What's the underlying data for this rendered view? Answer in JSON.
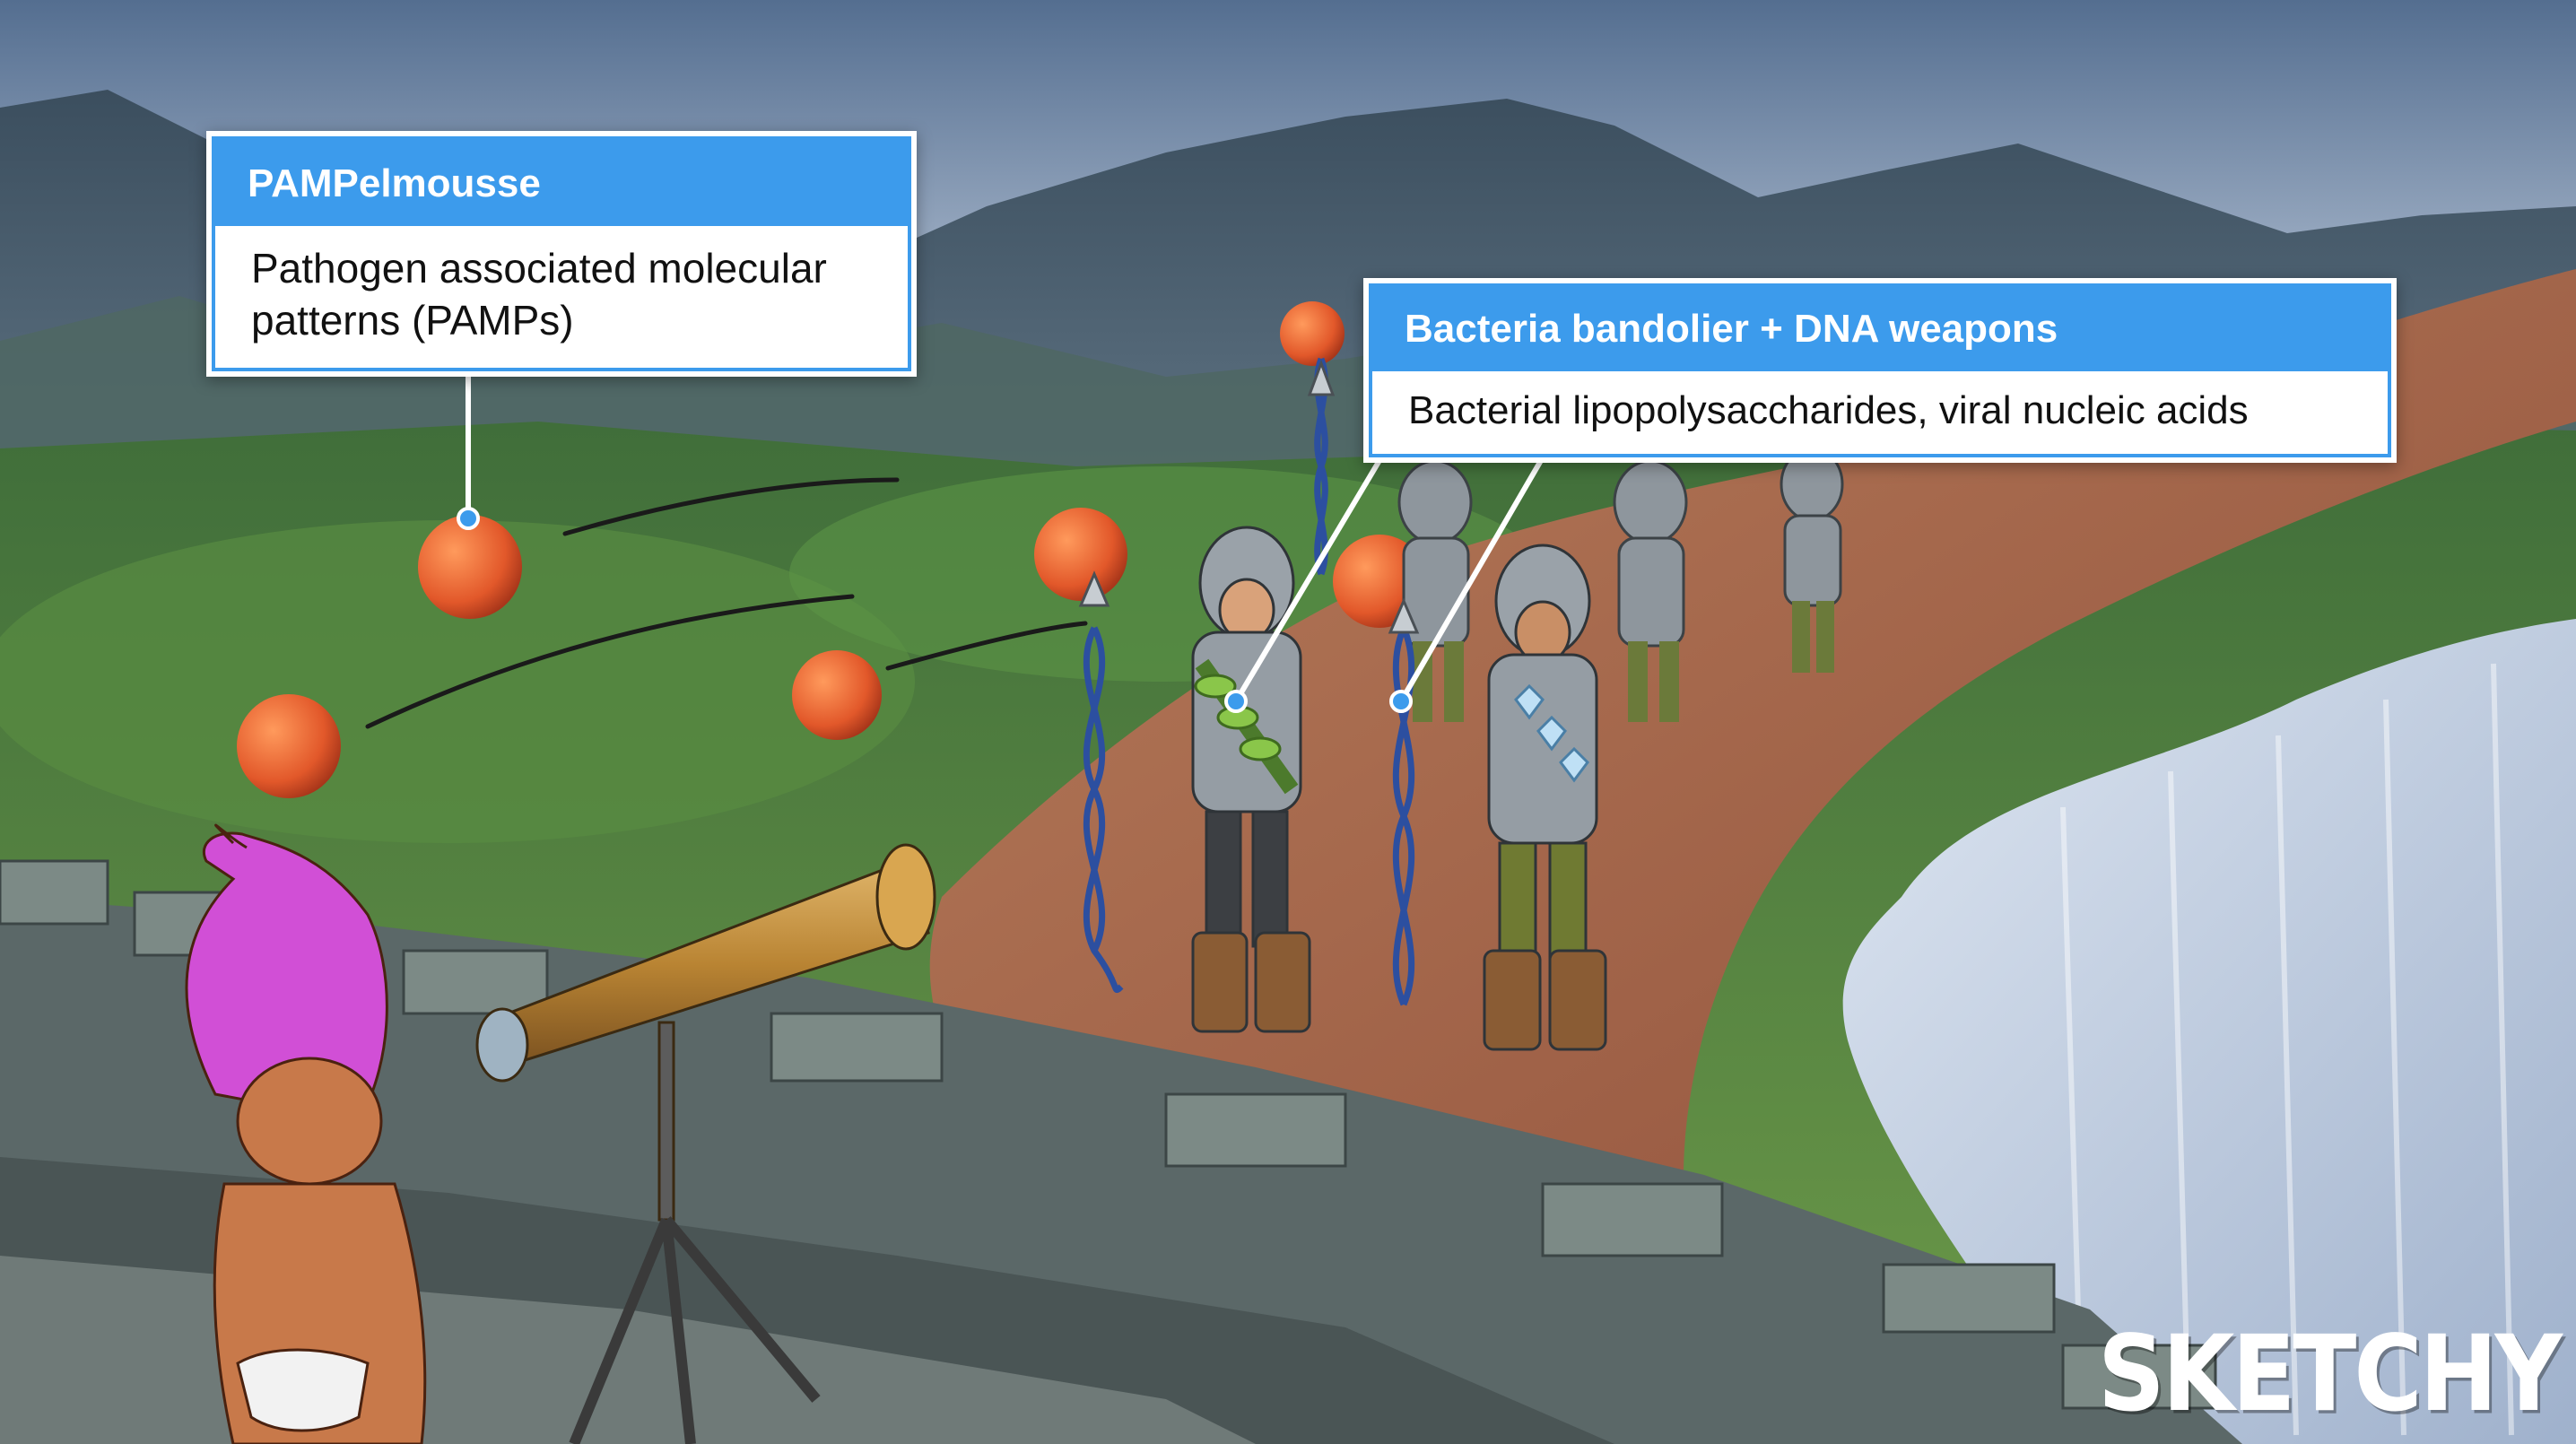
{
  "callouts": {
    "pamp": {
      "title": "PAMPelmousse",
      "body": "Pathogen associated molecular patterns (PAMPs)"
    },
    "bacteria": {
      "title": "Bacteria bandolier + DNA weapons",
      "body": "Bacterial lipopolysaccharides, viral nucleic acids"
    }
  },
  "brand": {
    "logo_text": "SKETCHY"
  },
  "colors": {
    "callout_header": "#3c9bec",
    "callout_body": "#ffffff",
    "pomelo": "#e8622a",
    "sky_top": "#5f7a99",
    "grass": "#4f8a3c",
    "dirt_path": "#a8664a",
    "wall_stone": "#5b6868",
    "troll_hair": "#d14fd6",
    "water": "#c9d7ea"
  }
}
